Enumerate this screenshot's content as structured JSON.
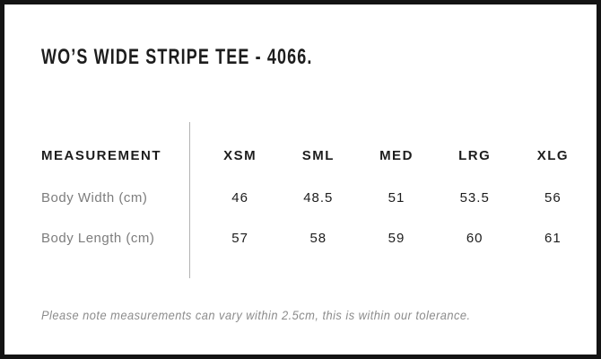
{
  "header": {
    "title": "WO’S WIDE STRIPE TEE - 4066."
  },
  "size_table": {
    "columns": [
      "MEASUREMENT",
      "XSM",
      "SML",
      "MED",
      "LRG",
      "XLG"
    ],
    "rows": [
      {
        "label": "Body Width (cm)",
        "values": [
          "46",
          "48.5",
          "51",
          "53.5",
          "56"
        ]
      },
      {
        "label": "Body Length (cm)",
        "values": [
          "57",
          "58",
          "59",
          "60",
          "61"
        ]
      }
    ]
  },
  "footer": {
    "note": "Please note measurements can vary within 2.5cm, this is within our tolerance."
  },
  "colors": {
    "text_primary": "#1d1d1d",
    "text_muted": "#7d7d7d",
    "note_text": "#8c8c8c",
    "divider": "#b3b3b3",
    "frame_border": "#141414",
    "background": "#ffffff"
  }
}
